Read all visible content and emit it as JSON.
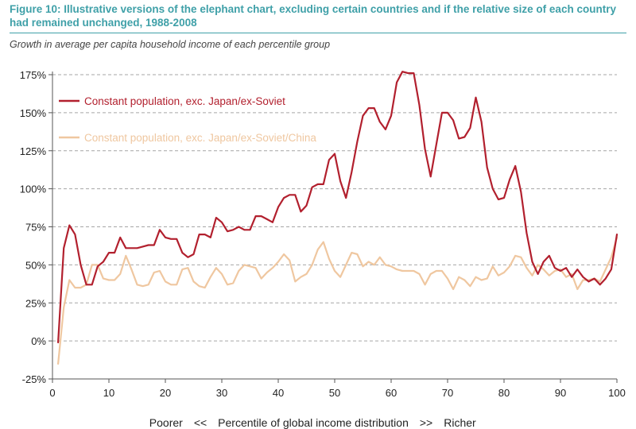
{
  "figure": {
    "title": "Figure 10:  Illustrative versions of the elephant chart, excluding certain countries and if the relative size of each country had remained unchanged, 1988-2008",
    "subtitle": "Growth in average per capita household income of each percentile group"
  },
  "chart_data": {
    "type": "line",
    "ylabel": "Growth in average per capita household income of each percentile group",
    "xlabel_parts": [
      "Poorer",
      "<<",
      "Percentile of global income distribution",
      ">>",
      "Richer"
    ],
    "xlim": [
      0,
      100
    ],
    "ylim": [
      -0.25,
      1.75
    ],
    "xticks": [
      0,
      10,
      20,
      30,
      40,
      50,
      60,
      70,
      80,
      90,
      100
    ],
    "yticks": [
      -0.25,
      0,
      0.25,
      0.5,
      0.75,
      1.0,
      1.25,
      1.5,
      1.75
    ],
    "ytick_labels": [
      "-25%",
      "0%",
      "25%",
      "50%",
      "75%",
      "100%",
      "125%",
      "150%",
      "175%"
    ],
    "grid": "horizontal dashed",
    "legend_placement": "top-left",
    "series": [
      {
        "name": "Constant population, exc. Japan/ex-Soviet",
        "color": "#b2202e",
        "points": [
          [
            1,
            -0.01
          ],
          [
            2,
            0.61
          ],
          [
            3,
            0.76
          ],
          [
            4,
            0.7
          ],
          [
            5,
            0.5
          ],
          [
            6,
            0.37
          ],
          [
            7,
            0.37
          ],
          [
            8,
            0.49
          ],
          [
            9,
            0.52
          ],
          [
            10,
            0.58
          ],
          [
            11,
            0.58
          ],
          [
            12,
            0.68
          ],
          [
            13,
            0.61
          ],
          [
            14,
            0.61
          ],
          [
            15,
            0.61
          ],
          [
            16,
            0.62
          ],
          [
            17,
            0.63
          ],
          [
            18,
            0.63
          ],
          [
            19,
            0.73
          ],
          [
            20,
            0.68
          ],
          [
            21,
            0.67
          ],
          [
            22,
            0.67
          ],
          [
            23,
            0.58
          ],
          [
            24,
            0.55
          ],
          [
            25,
            0.57
          ],
          [
            26,
            0.7
          ],
          [
            27,
            0.7
          ],
          [
            28,
            0.68
          ],
          [
            29,
            0.81
          ],
          [
            30,
            0.78
          ],
          [
            31,
            0.72
          ],
          [
            32,
            0.73
          ],
          [
            33,
            0.75
          ],
          [
            34,
            0.73
          ],
          [
            35,
            0.73
          ],
          [
            36,
            0.82
          ],
          [
            37,
            0.82
          ],
          [
            38,
            0.8
          ],
          [
            39,
            0.78
          ],
          [
            40,
            0.88
          ],
          [
            41,
            0.94
          ],
          [
            42,
            0.96
          ],
          [
            43,
            0.96
          ],
          [
            44,
            0.85
          ],
          [
            45,
            0.89
          ],
          [
            46,
            1.01
          ],
          [
            47,
            1.03
          ],
          [
            48,
            1.03
          ],
          [
            49,
            1.19
          ],
          [
            50,
            1.23
          ],
          [
            51,
            1.05
          ],
          [
            52,
            0.94
          ],
          [
            53,
            1.11
          ],
          [
            54,
            1.31
          ],
          [
            55,
            1.48
          ],
          [
            56,
            1.53
          ],
          [
            57,
            1.53
          ],
          [
            58,
            1.44
          ],
          [
            59,
            1.39
          ],
          [
            60,
            1.48
          ],
          [
            61,
            1.7
          ],
          [
            62,
            1.77
          ],
          [
            63,
            1.76
          ],
          [
            64,
            1.76
          ],
          [
            65,
            1.55
          ],
          [
            66,
            1.26
          ],
          [
            67,
            1.08
          ],
          [
            68,
            1.29
          ],
          [
            69,
            1.5
          ],
          [
            70,
            1.5
          ],
          [
            71,
            1.45
          ],
          [
            72,
            1.33
          ],
          [
            73,
            1.34
          ],
          [
            74,
            1.4
          ],
          [
            75,
            1.6
          ],
          [
            76,
            1.44
          ],
          [
            77,
            1.14
          ],
          [
            78,
            1.0
          ],
          [
            79,
            0.93
          ],
          [
            80,
            0.94
          ],
          [
            81,
            1.06
          ],
          [
            82,
            1.15
          ],
          [
            83,
            0.98
          ],
          [
            84,
            0.71
          ],
          [
            85,
            0.52
          ],
          [
            86,
            0.44
          ],
          [
            87,
            0.52
          ],
          [
            88,
            0.56
          ],
          [
            89,
            0.48
          ],
          [
            90,
            0.46
          ],
          [
            91,
            0.48
          ],
          [
            92,
            0.42
          ],
          [
            93,
            0.47
          ],
          [
            94,
            0.42
          ],
          [
            95,
            0.39
          ],
          [
            96,
            0.41
          ],
          [
            97,
            0.37
          ],
          [
            98,
            0.41
          ],
          [
            99,
            0.47
          ],
          [
            100,
            0.7
          ]
        ]
      },
      {
        "name": "Constant population, exc. Japan/ex-Soviet/China",
        "color": "#efc7a0",
        "points": [
          [
            1,
            -0.15
          ],
          [
            2,
            0.22
          ],
          [
            3,
            0.4
          ],
          [
            4,
            0.35
          ],
          [
            5,
            0.35
          ],
          [
            6,
            0.37
          ],
          [
            7,
            0.5
          ],
          [
            8,
            0.5
          ],
          [
            9,
            0.41
          ],
          [
            10,
            0.4
          ],
          [
            11,
            0.4
          ],
          [
            12,
            0.44
          ],
          [
            13,
            0.56
          ],
          [
            14,
            0.47
          ],
          [
            15,
            0.37
          ],
          [
            16,
            0.36
          ],
          [
            17,
            0.37
          ],
          [
            18,
            0.45
          ],
          [
            19,
            0.46
          ],
          [
            20,
            0.39
          ],
          [
            21,
            0.37
          ],
          [
            22,
            0.37
          ],
          [
            23,
            0.47
          ],
          [
            24,
            0.48
          ],
          [
            25,
            0.39
          ],
          [
            26,
            0.36
          ],
          [
            27,
            0.35
          ],
          [
            28,
            0.42
          ],
          [
            29,
            0.48
          ],
          [
            30,
            0.44
          ],
          [
            31,
            0.37
          ],
          [
            32,
            0.38
          ],
          [
            33,
            0.46
          ],
          [
            34,
            0.5
          ],
          [
            35,
            0.49
          ],
          [
            36,
            0.48
          ],
          [
            37,
            0.41
          ],
          [
            38,
            0.45
          ],
          [
            39,
            0.48
          ],
          [
            40,
            0.52
          ],
          [
            41,
            0.57
          ],
          [
            42,
            0.53
          ],
          [
            43,
            0.39
          ],
          [
            44,
            0.42
          ],
          [
            45,
            0.44
          ],
          [
            46,
            0.5
          ],
          [
            47,
            0.6
          ],
          [
            48,
            0.65
          ],
          [
            49,
            0.54
          ],
          [
            50,
            0.46
          ],
          [
            51,
            0.42
          ],
          [
            52,
            0.5
          ],
          [
            53,
            0.58
          ],
          [
            54,
            0.57
          ],
          [
            55,
            0.49
          ],
          [
            56,
            0.52
          ],
          [
            57,
            0.5
          ],
          [
            58,
            0.55
          ],
          [
            59,
            0.5
          ],
          [
            60,
            0.49
          ],
          [
            61,
            0.47
          ],
          [
            62,
            0.46
          ],
          [
            63,
            0.46
          ],
          [
            64,
            0.46
          ],
          [
            65,
            0.44
          ],
          [
            66,
            0.37
          ],
          [
            67,
            0.44
          ],
          [
            68,
            0.46
          ],
          [
            69,
            0.46
          ],
          [
            70,
            0.41
          ],
          [
            71,
            0.34
          ],
          [
            72,
            0.42
          ],
          [
            73,
            0.4
          ],
          [
            74,
            0.36
          ],
          [
            75,
            0.42
          ],
          [
            76,
            0.4
          ],
          [
            77,
            0.41
          ],
          [
            78,
            0.49
          ],
          [
            79,
            0.43
          ],
          [
            80,
            0.45
          ],
          [
            81,
            0.49
          ],
          [
            82,
            0.56
          ],
          [
            83,
            0.55
          ],
          [
            84,
            0.48
          ],
          [
            85,
            0.43
          ],
          [
            86,
            0.5
          ],
          [
            87,
            0.47
          ],
          [
            88,
            0.43
          ],
          [
            89,
            0.46
          ],
          [
            90,
            0.47
          ],
          [
            91,
            0.42
          ],
          [
            92,
            0.44
          ],
          [
            93,
            0.34
          ],
          [
            94,
            0.4
          ],
          [
            95,
            0.4
          ],
          [
            96,
            0.41
          ],
          [
            97,
            0.39
          ],
          [
            98,
            0.47
          ],
          [
            99,
            0.55
          ],
          [
            100,
            0.68
          ]
        ]
      }
    ]
  }
}
